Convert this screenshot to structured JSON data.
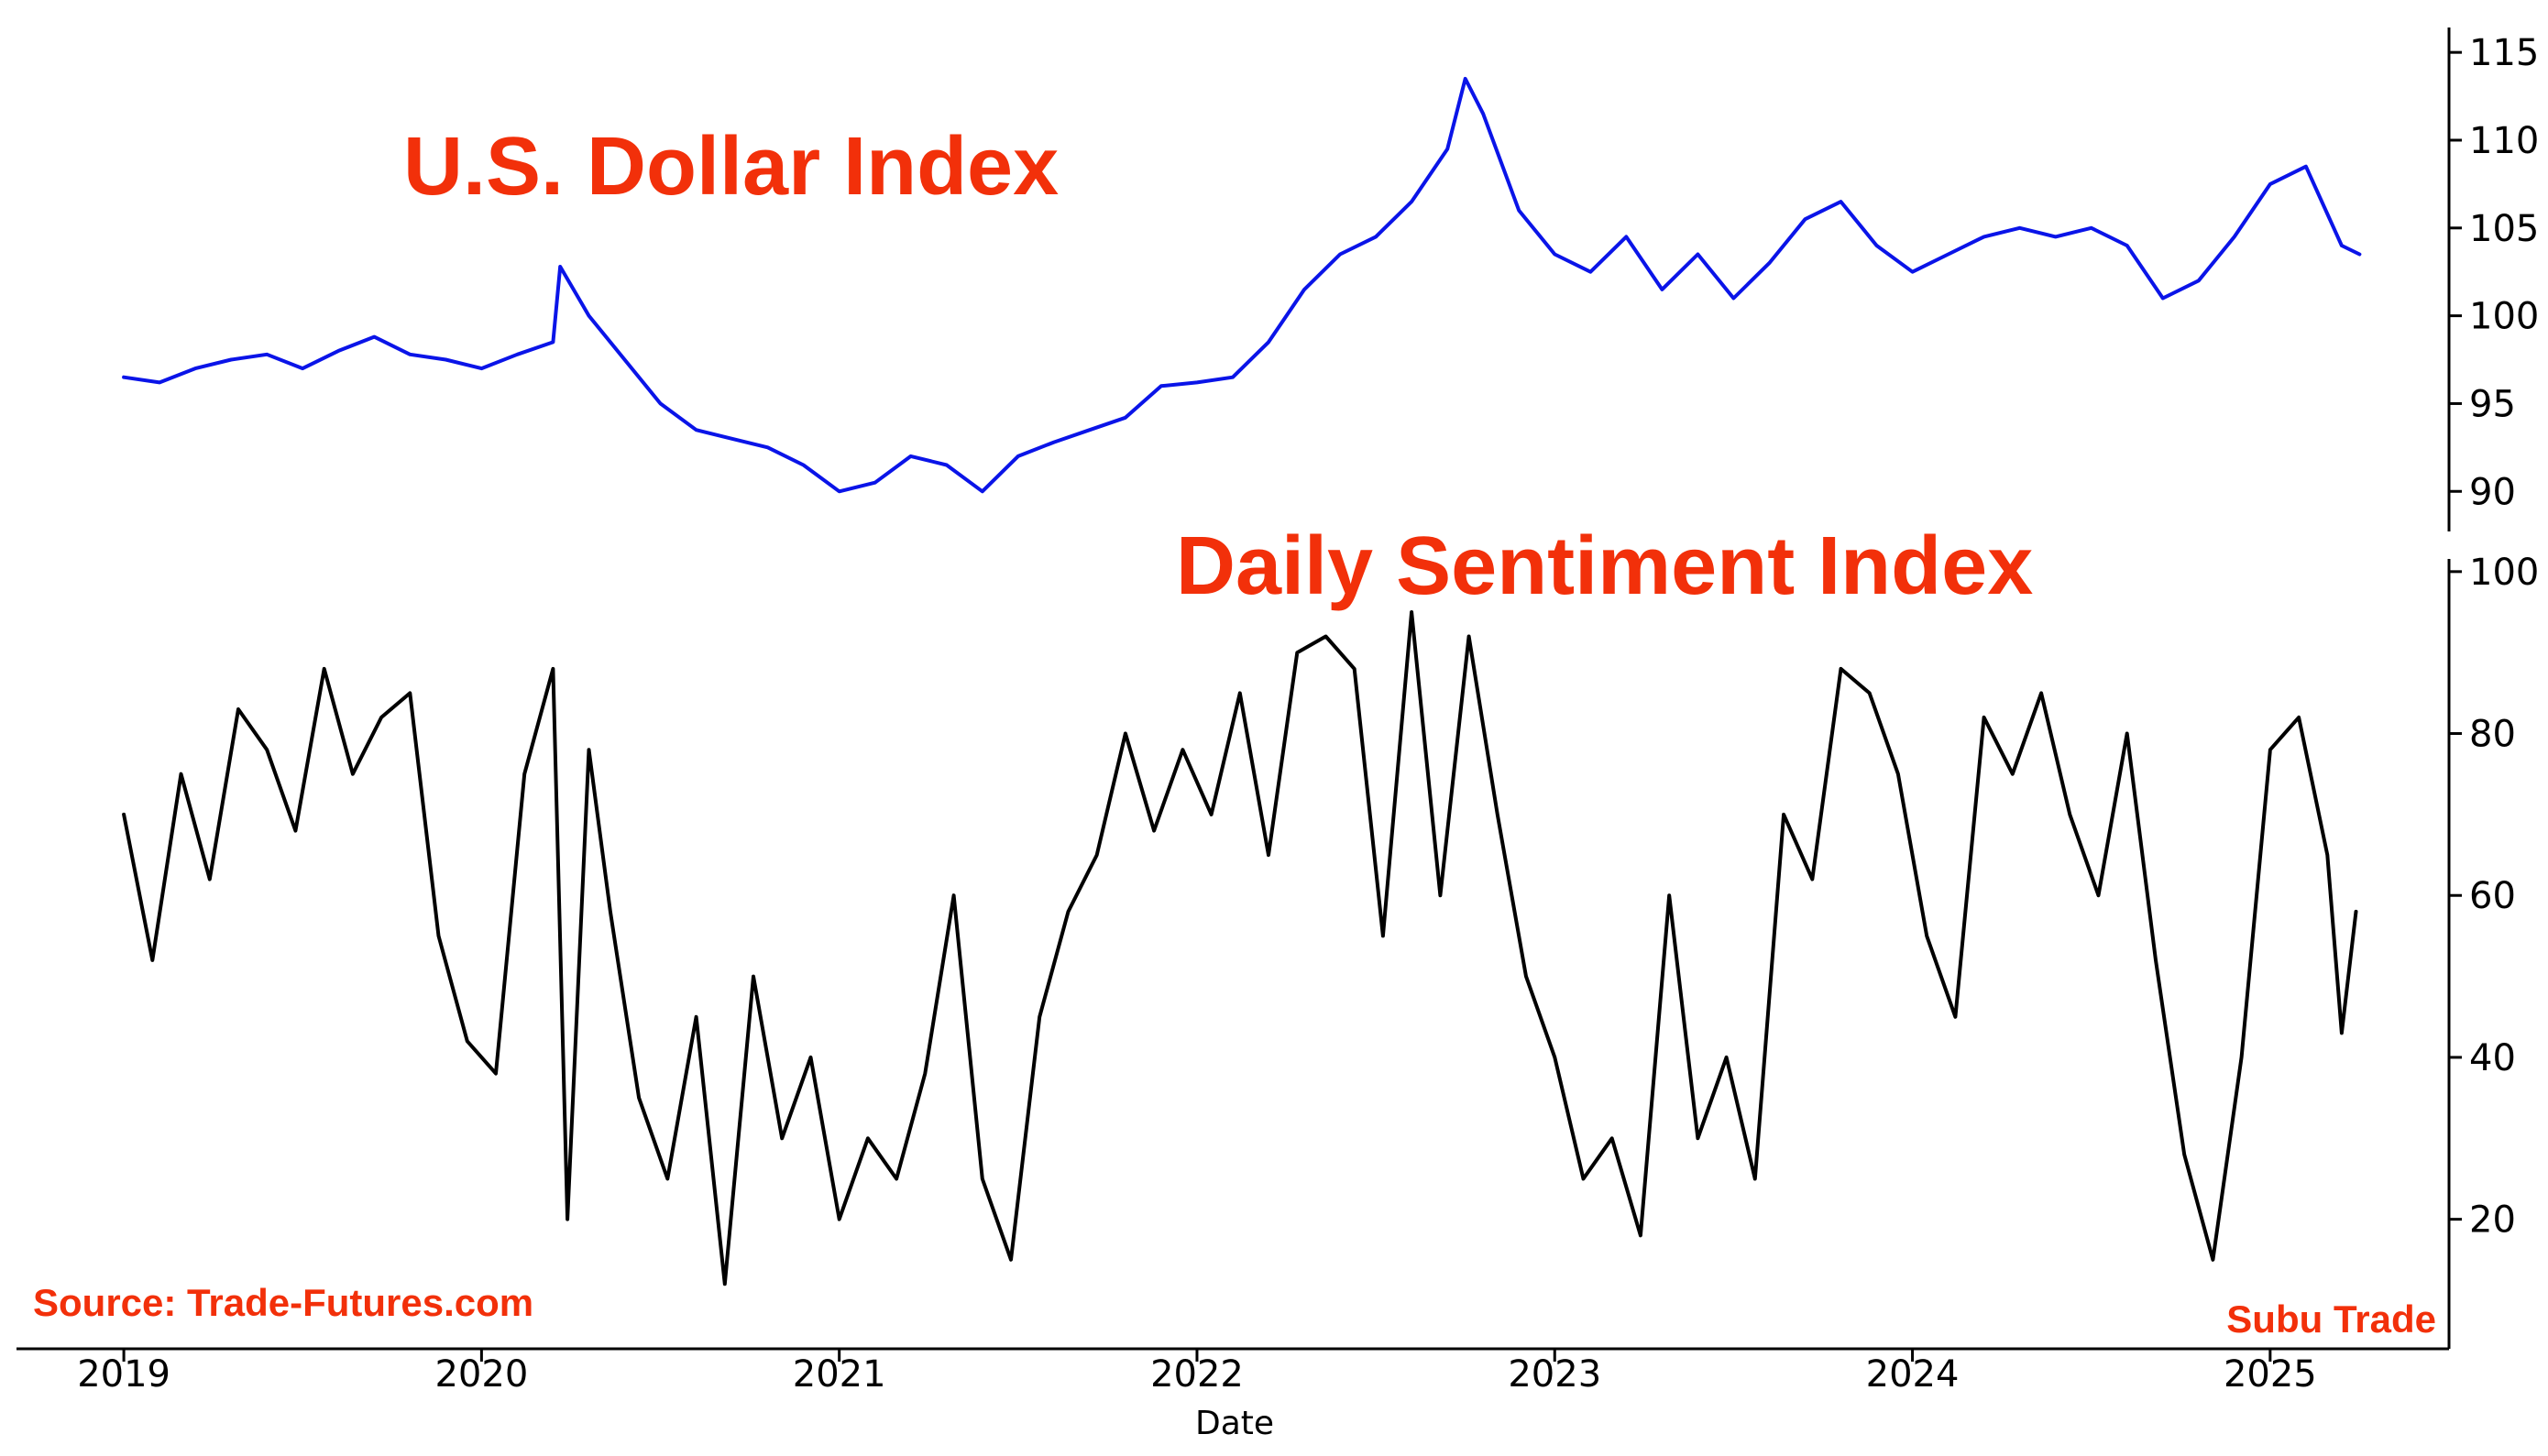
{
  "chart_data": [
    {
      "type": "line",
      "title": "U.S. Dollar Index",
      "series": [
        {
          "name": "U.S. Dollar Index",
          "color": "#0a14e8"
        }
      ],
      "ylim": [
        88.5,
        116
      ],
      "yticks": [
        90,
        95,
        100,
        105,
        110,
        115
      ],
      "x": [
        2019.0,
        2019.1,
        2019.2,
        2019.3,
        2019.4,
        2019.5,
        2019.6,
        2019.7,
        2019.8,
        2019.9,
        2020.0,
        2020.1,
        2020.2,
        2020.22,
        2020.3,
        2020.4,
        2020.5,
        2020.6,
        2020.7,
        2020.8,
        2020.9,
        2021.0,
        2021.1,
        2021.2,
        2021.3,
        2021.4,
        2021.5,
        2021.6,
        2021.7,
        2021.8,
        2021.9,
        2022.0,
        2022.1,
        2022.2,
        2022.3,
        2022.4,
        2022.5,
        2022.6,
        2022.7,
        2022.75,
        2022.8,
        2022.9,
        2023.0,
        2023.1,
        2023.2,
        2023.3,
        2023.4,
        2023.5,
        2023.6,
        2023.7,
        2023.8,
        2023.9,
        2024.0,
        2024.1,
        2024.2,
        2024.3,
        2024.4,
        2024.5,
        2024.6,
        2024.7,
        2024.8,
        2024.9,
        2025.0,
        2025.1,
        2025.2,
        2025.25
      ],
      "values": [
        96.5,
        96.2,
        97.0,
        97.5,
        97.8,
        97.0,
        98.0,
        98.8,
        97.8,
        97.5,
        97.0,
        97.8,
        98.5,
        102.8,
        100.0,
        97.5,
        95.0,
        93.5,
        93.0,
        92.5,
        91.5,
        90.0,
        90.5,
        92.0,
        91.5,
        90.0,
        92.0,
        92.8,
        93.5,
        94.2,
        96.0,
        96.2,
        96.5,
        98.5,
        101.5,
        103.5,
        104.5,
        106.5,
        109.5,
        113.5,
        111.5,
        106.0,
        103.5,
        102.5,
        104.5,
        101.5,
        103.5,
        101.0,
        103.0,
        105.5,
        106.5,
        104.0,
        102.5,
        103.5,
        104.5,
        105.0,
        104.5,
        105.0,
        104.0,
        101.0,
        102.0,
        104.5,
        107.5,
        108.5,
        104.0,
        103.5
      ]
    },
    {
      "type": "line",
      "title": "Daily Sentiment Index",
      "series": [
        {
          "name": "Daily Sentiment Index",
          "color": "#000000"
        }
      ],
      "ylim": [
        4,
        101
      ],
      "yticks": [
        20,
        40,
        60,
        80,
        100
      ],
      "x": [
        2019.0,
        2019.08,
        2019.16,
        2019.24,
        2019.32,
        2019.4,
        2019.48,
        2019.56,
        2019.64,
        2019.72,
        2019.8,
        2019.88,
        2019.96,
        2020.04,
        2020.12,
        2020.2,
        2020.24,
        2020.3,
        2020.36,
        2020.44,
        2020.52,
        2020.6,
        2020.68,
        2020.76,
        2020.84,
        2020.92,
        2021.0,
        2021.08,
        2021.16,
        2021.24,
        2021.32,
        2021.4,
        2021.48,
        2021.56,
        2021.64,
        2021.72,
        2021.8,
        2021.88,
        2021.96,
        2022.04,
        2022.12,
        2022.2,
        2022.28,
        2022.36,
        2022.44,
        2022.52,
        2022.6,
        2022.68,
        2022.76,
        2022.84,
        2022.92,
        2023.0,
        2023.08,
        2023.16,
        2023.24,
        2023.32,
        2023.4,
        2023.48,
        2023.56,
        2023.64,
        2023.72,
        2023.8,
        2023.88,
        2023.96,
        2024.04,
        2024.12,
        2024.2,
        2024.28,
        2024.36,
        2024.44,
        2024.52,
        2024.6,
        2024.68,
        2024.76,
        2024.84,
        2024.92,
        2025.0,
        2025.08,
        2025.16,
        2025.2,
        2025.24
      ],
      "values": [
        70,
        52,
        75,
        62,
        83,
        78,
        68,
        88,
        75,
        82,
        85,
        55,
        42,
        38,
        75,
        88,
        20,
        78,
        58,
        35,
        25,
        45,
        12,
        50,
        30,
        40,
        20,
        30,
        25,
        38,
        60,
        25,
        15,
        45,
        58,
        65,
        80,
        68,
        78,
        70,
        85,
        65,
        90,
        92,
        88,
        55,
        95,
        60,
        92,
        70,
        50,
        40,
        25,
        30,
        18,
        60,
        30,
        40,
        25,
        70,
        62,
        88,
        85,
        75,
        55,
        45,
        82,
        75,
        85,
        70,
        60,
        80,
        52,
        28,
        15,
        40,
        78,
        82,
        65,
        43,
        58
      ]
    }
  ],
  "x_axis": {
    "label": "Date",
    "ticks": [
      "2019",
      "2020",
      "2021",
      "2022",
      "2023",
      "2024",
      "2025"
    ],
    "range": [
      2018.7,
      2025.5
    ]
  },
  "annotations": {
    "source": "Source: Trade-Futures.com",
    "brand": "Subu Trade"
  },
  "colors": {
    "title_red": "#f2300a",
    "dollar_line": "#0a14e8",
    "sentiment_line": "#000000"
  }
}
